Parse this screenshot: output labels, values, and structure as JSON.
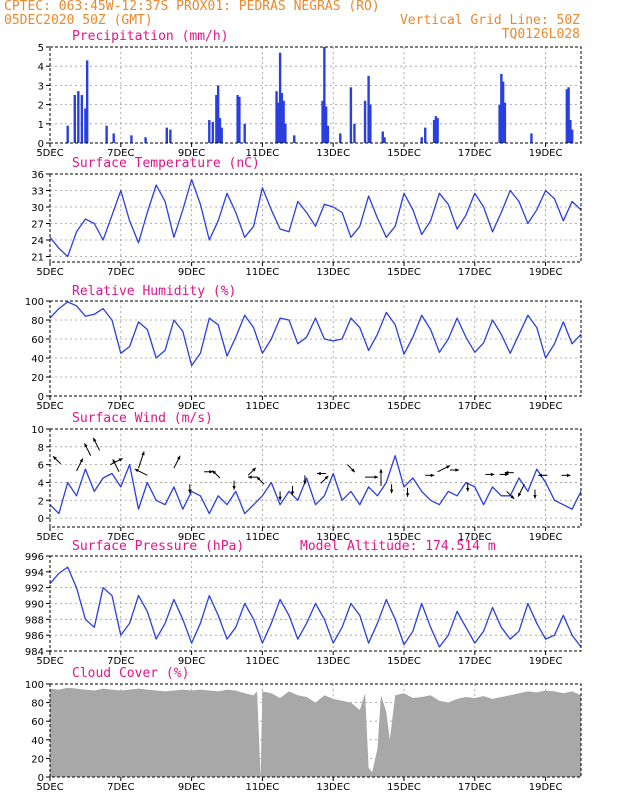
{
  "header": {
    "line1": "CPTEC:   063:45W-12:37S   PROX01: PEDRAS NEGRAS (RO)",
    "line2_left": "05DEC2020 50Z (GMT)",
    "line2_right": "Vertical Grid Line: 50Z",
    "line3_right": "TQ0126L028"
  },
  "colors": {
    "header": "#e8892c",
    "title": "#e0148c",
    "series": "#2a3fe0",
    "cloud_fill": "#a8a8a8",
    "grid": "#9a9a9a"
  },
  "x_axis": {
    "range_days": [
      5.0,
      20.0
    ],
    "ticks": [
      {
        "value": 5,
        "label": "5DEC"
      },
      {
        "value": 7,
        "label": "7DEC"
      },
      {
        "value": 9,
        "label": "9DEC"
      },
      {
        "value": 11,
        "label": "11DEC"
      },
      {
        "value": 13,
        "label": "13DEC"
      },
      {
        "value": 15,
        "label": "15DEC"
      },
      {
        "value": 17,
        "label": "17DEC"
      },
      {
        "value": 19,
        "label": "19DEC"
      }
    ]
  },
  "chart_data": [
    {
      "id": "precip",
      "type": "bar",
      "title": "Precipitation (mm/h)",
      "ylim": [
        0,
        5
      ],
      "yticks": [
        0,
        1,
        2,
        3,
        4,
        5
      ],
      "grid": true,
      "x": [
        5.5,
        5.7,
        5.8,
        5.9,
        6.0,
        6.05,
        6.6,
        6.8,
        7.3,
        7.7,
        8.3,
        8.4,
        9.5,
        9.6,
        9.7,
        9.75,
        9.8,
        9.85,
        10.3,
        10.35,
        10.5,
        11.4,
        11.45,
        11.5,
        11.55,
        11.6,
        11.65,
        11.9,
        12.7,
        12.75,
        12.8,
        12.85,
        13.2,
        13.5,
        13.6,
        13.9,
        14.0,
        14.05,
        14.4,
        14.45,
        15.5,
        15.6,
        15.85,
        15.9,
        15.95,
        17.7,
        17.75,
        17.8,
        17.85,
        18.6,
        19.6,
        19.65,
        19.7,
        19.75
      ],
      "values": [
        0.9,
        2.5,
        2.7,
        2.5,
        1.8,
        4.3,
        0.9,
        0.5,
        0.4,
        0.3,
        0.8,
        0.7,
        1.2,
        1.1,
        2.5,
        3.0,
        1.3,
        0.8,
        2.5,
        2.4,
        1.0,
        2.7,
        2.1,
        4.7,
        2.6,
        2.2,
        1.0,
        0.4,
        2.2,
        5.0,
        1.9,
        0.9,
        0.5,
        2.9,
        1.0,
        2.2,
        3.5,
        2.0,
        0.6,
        0.3,
        0.3,
        0.8,
        1.2,
        1.4,
        1.3,
        2.0,
        3.6,
        3.2,
        2.1,
        0.5,
        2.8,
        2.9,
        1.2,
        0.7
      ]
    },
    {
      "id": "temp",
      "type": "line",
      "title": "Surface Temperature (nC)",
      "ylim": [
        20,
        36
      ],
      "yticks": [
        21,
        24,
        27,
        30,
        33,
        36
      ],
      "grid": true,
      "x": [
        5.0,
        5.25,
        5.5,
        5.75,
        6.0,
        6.25,
        6.5,
        6.75,
        7.0,
        7.25,
        7.5,
        7.75,
        8.0,
        8.25,
        8.5,
        8.75,
        9.0,
        9.25,
        9.5,
        9.75,
        10.0,
        10.25,
        10.5,
        10.75,
        11.0,
        11.25,
        11.5,
        11.75,
        12.0,
        12.25,
        12.5,
        12.75,
        13.0,
        13.25,
        13.5,
        13.75,
        14.0,
        14.25,
        14.5,
        14.75,
        15.0,
        15.25,
        15.5,
        15.75,
        16.0,
        16.25,
        16.5,
        16.75,
        17.0,
        17.25,
        17.5,
        17.75,
        18.0,
        18.25,
        18.5,
        18.75,
        19.0,
        19.25,
        19.5,
        19.75,
        20.0
      ],
      "values": [
        24.5,
        22.5,
        21.0,
        25.5,
        27.8,
        27.0,
        24.0,
        28.5,
        33.0,
        27.5,
        23.5,
        29.0,
        34.0,
        31.0,
        24.5,
        29.5,
        35.0,
        30.5,
        24.0,
        27.5,
        32.5,
        29.0,
        24.5,
        26.5,
        33.5,
        29.5,
        26.0,
        25.5,
        31.0,
        29.0,
        26.5,
        30.5,
        30.0,
        29.0,
        24.5,
        26.5,
        32.0,
        28.0,
        24.5,
        26.5,
        32.5,
        29.5,
        25.0,
        27.5,
        32.5,
        30.5,
        26.0,
        28.5,
        32.5,
        30.0,
        25.5,
        29.0,
        33.0,
        31.0,
        27.0,
        29.5,
        33.0,
        31.5,
        27.5,
        31.0,
        29.5
      ]
    },
    {
      "id": "rh",
      "type": "line",
      "title": "Relative Humidity (%)",
      "ylim": [
        0,
        100
      ],
      "yticks": [
        0,
        20,
        40,
        60,
        80,
        100
      ],
      "grid": true,
      "x": [
        5.0,
        5.25,
        5.5,
        5.75,
        6.0,
        6.25,
        6.5,
        6.75,
        7.0,
        7.25,
        7.5,
        7.75,
        8.0,
        8.25,
        8.5,
        8.75,
        9.0,
        9.25,
        9.5,
        9.75,
        10.0,
        10.25,
        10.5,
        10.75,
        11.0,
        11.25,
        11.5,
        11.75,
        12.0,
        12.25,
        12.5,
        12.75,
        13.0,
        13.25,
        13.5,
        13.75,
        14.0,
        14.25,
        14.5,
        14.75,
        15.0,
        15.25,
        15.5,
        15.75,
        16.0,
        16.25,
        16.5,
        16.75,
        17.0,
        17.25,
        17.5,
        17.75,
        18.0,
        18.25,
        18.5,
        18.75,
        19.0,
        19.25,
        19.5,
        19.75,
        20.0
      ],
      "values": [
        82,
        92,
        99,
        95,
        84,
        86,
        92,
        80,
        45,
        52,
        78,
        70,
        40,
        48,
        80,
        68,
        32,
        45,
        82,
        75,
        42,
        62,
        85,
        72,
        45,
        60,
        82,
        80,
        55,
        62,
        82,
        60,
        58,
        60,
        82,
        72,
        48,
        65,
        88,
        75,
        44,
        62,
        85,
        70,
        46,
        60,
        82,
        62,
        46,
        56,
        80,
        65,
        45,
        65,
        85,
        72,
        40,
        55,
        78,
        55,
        65
      ]
    },
    {
      "id": "wind",
      "type": "line",
      "title": "Surface Wind (m/s)",
      "ylim": [
        -1,
        10
      ],
      "yticks": [
        0,
        2,
        4,
        6,
        8,
        10
      ],
      "grid": true,
      "x": [
        5.0,
        5.25,
        5.5,
        5.75,
        6.0,
        6.25,
        6.5,
        6.75,
        7.0,
        7.25,
        7.5,
        7.75,
        8.0,
        8.25,
        8.5,
        8.75,
        9.0,
        9.25,
        9.5,
        9.75,
        10.0,
        10.25,
        10.5,
        10.75,
        11.0,
        11.25,
        11.5,
        11.75,
        12.0,
        12.25,
        12.5,
        12.75,
        13.0,
        13.25,
        13.5,
        13.75,
        14.0,
        14.25,
        14.5,
        14.75,
        15.0,
        15.25,
        15.5,
        15.75,
        16.0,
        16.25,
        16.5,
        16.75,
        17.0,
        17.25,
        17.5,
        17.75,
        18.0,
        18.25,
        18.5,
        18.75,
        19.0,
        19.25,
        19.5,
        19.75,
        20.0
      ],
      "values": [
        1.5,
        0.5,
        4.0,
        2.5,
        5.5,
        3.0,
        4.5,
        5.0,
        3.5,
        6.0,
        1.0,
        4.0,
        2.0,
        1.5,
        3.5,
        1.0,
        3.0,
        2.5,
        0.5,
        2.5,
        1.5,
        3.0,
        0.5,
        1.5,
        2.5,
        4.0,
        1.5,
        3.0,
        2.0,
        4.5,
        1.5,
        2.5,
        5.0,
        2.0,
        3.0,
        1.5,
        3.5,
        2.5,
        4.0,
        7.0,
        3.5,
        4.5,
        3.0,
        2.0,
        1.5,
        3.0,
        2.5,
        4.0,
        3.5,
        1.5,
        3.5,
        2.5,
        2.5,
        4.5,
        3.0,
        5.5,
        4.0,
        2.0,
        1.5,
        1.0,
        3.0
      ],
      "vectors": [
        {
          "x": 5.3,
          "y": 6.1,
          "u": -1,
          "v": 1
        },
        {
          "x": 5.75,
          "y": 5.3,
          "u": 1,
          "v": 2
        },
        {
          "x": 6.15,
          "y": 7.0,
          "u": -1,
          "v": 2
        },
        {
          "x": 6.4,
          "y": 7.6,
          "u": -1,
          "v": 2
        },
        {
          "x": 6.7,
          "y": 6.0,
          "u": 2,
          "v": 1
        },
        {
          "x": 6.95,
          "y": 5.2,
          "u": -1,
          "v": 2
        },
        {
          "x": 7.5,
          "y": 5.6,
          "u": 1,
          "v": 3
        },
        {
          "x": 7.75,
          "y": 4.8,
          "u": -2,
          "v": 1
        },
        {
          "x": 8.5,
          "y": 5.6,
          "u": 1,
          "v": 2
        },
        {
          "x": 8.95,
          "y": 3.8,
          "u": 0,
          "v": -1
        },
        {
          "x": 9.35,
          "y": 5.2,
          "u": 1,
          "v": 0
        },
        {
          "x": 9.8,
          "y": 4.5,
          "u": -1,
          "v": 1
        },
        {
          "x": 10.2,
          "y": 4.2,
          "u": 0,
          "v": -1
        },
        {
          "x": 10.6,
          "y": 4.8,
          "u": 1,
          "v": 1
        },
        {
          "x": 10.85,
          "y": 4.6,
          "u": -1,
          "v": 0
        },
        {
          "x": 11.05,
          "y": 3.8,
          "u": -1,
          "v": 1
        },
        {
          "x": 11.5,
          "y": 3.0,
          "u": 0,
          "v": -1
        },
        {
          "x": 11.85,
          "y": 3.6,
          "u": 0,
          "v": -1
        },
        {
          "x": 12.2,
          "y": 4.8,
          "u": 0,
          "v": -1
        },
        {
          "x": 12.65,
          "y": 3.9,
          "u": 1,
          "v": 1
        },
        {
          "x": 12.8,
          "y": 5.0,
          "u": -1,
          "v": 0
        },
        {
          "x": 13.4,
          "y": 6.0,
          "u": 1,
          "v": -1
        },
        {
          "x": 13.9,
          "y": 4.6,
          "u": 2,
          "v": 0
        },
        {
          "x": 14.35,
          "y": 3.6,
          "u": 0,
          "v": 3
        },
        {
          "x": 14.65,
          "y": 3.8,
          "u": 0,
          "v": -1
        },
        {
          "x": 15.1,
          "y": 3.4,
          "u": 0,
          "v": -1
        },
        {
          "x": 15.6,
          "y": 4.8,
          "u": 1,
          "v": 0
        },
        {
          "x": 15.95,
          "y": 5.2,
          "u": 2,
          "v": 1
        },
        {
          "x": 16.3,
          "y": 5.4,
          "u": 1,
          "v": 0
        },
        {
          "x": 16.8,
          "y": 4.0,
          "u": 0,
          "v": -1
        },
        {
          "x": 17.3,
          "y": 4.9,
          "u": 1,
          "v": 0
        },
        {
          "x": 17.7,
          "y": 4.9,
          "u": 1,
          "v": 0
        },
        {
          "x": 17.9,
          "y": 3.0,
          "u": 1,
          "v": -1
        },
        {
          "x": 18.1,
          "y": 5.1,
          "u": -1,
          "v": 0
        },
        {
          "x": 18.4,
          "y": 3.8,
          "u": -1,
          "v": -2
        },
        {
          "x": 18.7,
          "y": 3.2,
          "u": 0,
          "v": -1
        },
        {
          "x": 19.05,
          "y": 4.8,
          "u": -1,
          "v": 0
        },
        {
          "x": 19.45,
          "y": 4.8,
          "u": 1,
          "v": 0
        }
      ]
    },
    {
      "id": "pressure",
      "type": "line",
      "title": "Surface Pressure (hPa)",
      "annotation": "Model Altitude: 174.514 m",
      "ylim": [
        984,
        996
      ],
      "yticks": [
        984,
        986,
        988,
        990,
        992,
        994,
        996
      ],
      "grid": true,
      "x": [
        5.0,
        5.25,
        5.5,
        5.75,
        6.0,
        6.25,
        6.5,
        6.75,
        7.0,
        7.25,
        7.5,
        7.75,
        8.0,
        8.25,
        8.5,
        8.75,
        9.0,
        9.25,
        9.5,
        9.75,
        10.0,
        10.25,
        10.5,
        10.75,
        11.0,
        11.25,
        11.5,
        11.75,
        12.0,
        12.25,
        12.5,
        12.75,
        13.0,
        13.25,
        13.5,
        13.75,
        14.0,
        14.25,
        14.5,
        14.75,
        15.0,
        15.25,
        15.5,
        15.75,
        16.0,
        16.25,
        16.5,
        16.75,
        17.0,
        17.25,
        17.5,
        17.75,
        18.0,
        18.25,
        18.5,
        18.75,
        19.0,
        19.25,
        19.5,
        19.75,
        20.0
      ],
      "values": [
        992.5,
        993.8,
        994.6,
        992.0,
        988.0,
        987.0,
        992.0,
        991.0,
        986.0,
        987.5,
        991.0,
        989.0,
        985.5,
        987.5,
        990.5,
        988.0,
        985.0,
        987.5,
        991.0,
        988.5,
        985.5,
        987.0,
        990.0,
        988.0,
        985.0,
        987.5,
        990.5,
        988.5,
        985.5,
        987.5,
        990.0,
        988.0,
        985.0,
        987.0,
        990.0,
        988.5,
        985.0,
        987.5,
        990.5,
        988.0,
        984.8,
        986.5,
        990.0,
        987.0,
        984.5,
        986.0,
        989.0,
        987.0,
        985.0,
        986.5,
        989.5,
        987.0,
        985.5,
        986.5,
        990.0,
        987.5,
        985.5,
        986.0,
        988.5,
        986.0,
        984.5
      ]
    },
    {
      "id": "cloud",
      "type": "area",
      "title": "Cloud Cover (%)",
      "ylim": [
        0,
        100
      ],
      "yticks": [
        0,
        20,
        40,
        60,
        80,
        100
      ],
      "grid": true,
      "x": [
        5.0,
        5.25,
        5.5,
        5.75,
        6.0,
        6.25,
        6.5,
        6.75,
        7.0,
        7.25,
        7.5,
        7.75,
        8.0,
        8.25,
        8.5,
        8.75,
        9.0,
        9.25,
        9.5,
        9.75,
        10.0,
        10.25,
        10.5,
        10.75,
        10.85,
        10.95,
        11.0,
        11.25,
        11.5,
        11.75,
        12.0,
        12.25,
        12.5,
        12.75,
        13.0,
        13.25,
        13.5,
        13.75,
        13.9,
        14.0,
        14.1,
        14.25,
        14.35,
        14.5,
        14.6,
        14.75,
        15.0,
        15.25,
        15.5,
        15.75,
        16.0,
        16.25,
        16.5,
        16.75,
        17.0,
        17.25,
        17.5,
        17.75,
        18.0,
        18.25,
        18.5,
        18.75,
        19.0,
        19.25,
        19.5,
        19.75,
        20.0
      ],
      "values": [
        95,
        94,
        96,
        95,
        94,
        93,
        95,
        94,
        93,
        94,
        95,
        94,
        93,
        92,
        93,
        94,
        93,
        94,
        93,
        92,
        94,
        93,
        90,
        88,
        92,
        0,
        92,
        90,
        85,
        92,
        88,
        86,
        80,
        88,
        84,
        82,
        80,
        72,
        90,
        10,
        5,
        30,
        88,
        70,
        40,
        88,
        90,
        85,
        86,
        88,
        82,
        80,
        84,
        86,
        85,
        87,
        84,
        86,
        88,
        90,
        92,
        91,
        93,
        92,
        90,
        92,
        88
      ]
    }
  ]
}
